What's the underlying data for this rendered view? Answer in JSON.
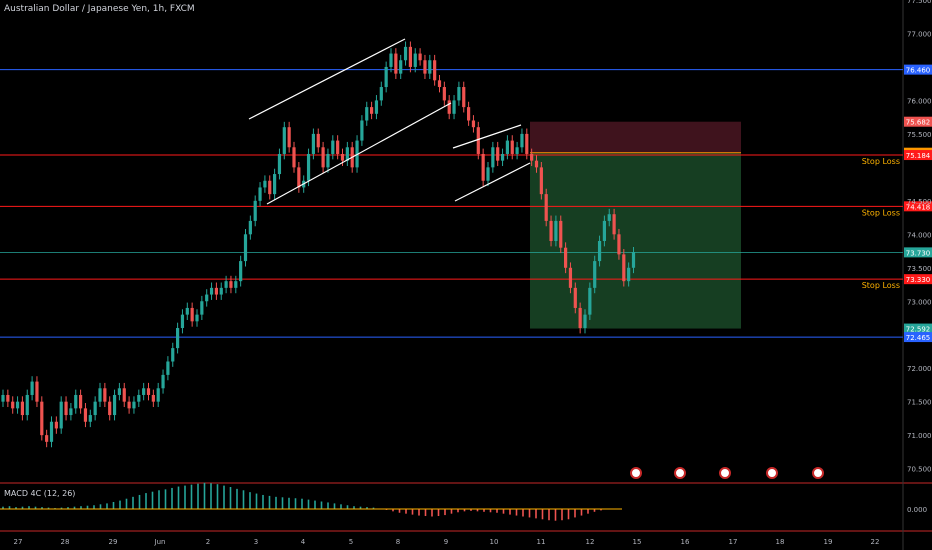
{
  "header": {
    "title": "Australian Dollar / Japanese Yen, 1h, FXCM"
  },
  "macd_panel": {
    "label": "MACD 4C (12, 26)",
    "value_label": "0.000"
  },
  "colors": {
    "background": "#000000",
    "up": "#26a69a",
    "down": "#ef5350",
    "blue_line": "#2962ff",
    "red_line": "#ff1a1a",
    "green_line": "#26a69a",
    "orange_line": "#ff9800",
    "stop_text": "#ffb300",
    "profit_zone": "#1b4d2a",
    "risk_zone": "#4a1622",
    "channel": "#ffffff"
  },
  "chart_data": {
    "type": "candlestick",
    "symbol": "AUDJPY",
    "timeframe": "1h",
    "x_ticks": [
      "27",
      "28",
      "29",
      "Jun",
      "2",
      "3",
      "4",
      "5",
      "8",
      "9",
      "10",
      "11",
      "12",
      "15",
      "16",
      "17",
      "18",
      "19",
      "22"
    ],
    "y_ticks": [
      "77.500",
      "77.000",
      "76.000",
      "75.500",
      "74.500",
      "74.000",
      "73.500",
      "73.000",
      "72.000",
      "71.500",
      "71.000",
      "70.500"
    ],
    "ylim": [
      70.3,
      77.5
    ],
    "price_levels": [
      {
        "value": 76.46,
        "label": "76.460",
        "color": "#2962ff",
        "note": ""
      },
      {
        "value": 75.682,
        "label": "75.682",
        "color": "#ef5350",
        "note": ""
      },
      {
        "value": 75.219,
        "label": "75.219",
        "color": "#ff9800",
        "note": ""
      },
      {
        "value": 75.184,
        "label": "75.184",
        "color": "#ff1a1a",
        "note": "Stop Loss"
      },
      {
        "value": 74.418,
        "label": "74.418",
        "color": "#ff1a1a",
        "note": "Stop Loss"
      },
      {
        "value": 73.73,
        "label": "73.730",
        "color": "#26a69a",
        "note": ""
      },
      {
        "value": 73.33,
        "label": "73.330",
        "color": "#ff1a1a",
        "note": "Stop Loss"
      },
      {
        "value": 72.592,
        "label": "72.592",
        "color": "#26a69a",
        "note": ""
      },
      {
        "value": 72.465,
        "label": "72.465",
        "color": "#2962ff",
        "note": ""
      }
    ],
    "position_zone": {
      "entry": 75.219,
      "stop": 75.682,
      "target": 72.592
    },
    "closes": [
      71.6,
      71.5,
      71.4,
      71.5,
      71.3,
      71.6,
      71.8,
      71.5,
      71.0,
      70.9,
      71.2,
      71.1,
      71.5,
      71.3,
      71.4,
      71.6,
      71.4,
      71.2,
      71.3,
      71.5,
      71.7,
      71.5,
      71.3,
      71.6,
      71.7,
      71.5,
      71.4,
      71.5,
      71.6,
      71.7,
      71.6,
      71.5,
      71.7,
      71.9,
      72.1,
      72.3,
      72.6,
      72.8,
      72.9,
      72.7,
      72.8,
      73.0,
      73.1,
      73.2,
      73.1,
      73.2,
      73.3,
      73.2,
      73.3,
      73.6,
      74.0,
      74.2,
      74.5,
      74.7,
      74.8,
      74.6,
      74.9,
      75.2,
      75.6,
      75.3,
      75.0,
      74.7,
      74.8,
      75.2,
      75.5,
      75.3,
      75.0,
      75.2,
      75.4,
      75.2,
      75.1,
      75.3,
      75.0,
      75.4,
      75.7,
      75.9,
      75.8,
      76.0,
      76.2,
      76.5,
      76.7,
      76.4,
      76.6,
      76.8,
      76.5,
      76.7,
      76.6,
      76.4,
      76.6,
      76.3,
      76.2,
      76.0,
      75.8,
      76.0,
      76.2,
      75.9,
      75.7,
      75.6,
      75.2,
      74.8,
      75.0,
      75.3,
      75.1,
      75.2,
      75.4,
      75.2,
      75.3,
      75.5,
      75.2,
      75.1,
      75.0,
      74.6,
      74.2,
      73.9,
      74.2,
      73.8,
      73.5,
      73.2,
      72.9,
      72.6,
      72.8,
      73.2,
      73.6,
      73.9,
      74.2,
      74.3,
      74.0,
      73.7,
      73.3,
      73.5,
      73.73
    ],
    "x_at": [
      {
        "label": "Jun",
        "index": 36
      },
      {
        "label": "12",
        "index": 128
      }
    ],
    "macd": [
      0.05,
      0.06,
      0.04,
      0.05,
      0.06,
      0.05,
      0.04,
      0.03,
      0.02,
      0.03,
      0.04,
      0.05,
      0.06,
      0.07,
      0.08,
      0.1,
      0.12,
      0.15,
      0.18,
      0.22,
      0.26,
      0.3,
      0.34,
      0.37,
      0.4,
      0.42,
      0.45,
      0.48,
      0.5,
      0.52,
      0.54,
      0.56,
      0.55,
      0.53,
      0.5,
      0.47,
      0.43,
      0.4,
      0.36,
      0.33,
      0.3,
      0.28,
      0.26,
      0.25,
      0.24,
      0.23,
      0.22,
      0.2,
      0.18,
      0.16,
      0.14,
      0.12,
      0.1,
      0.08,
      0.06,
      0.05,
      0.04,
      0.03,
      0.01,
      -0.02,
      -0.05,
      -0.08,
      -0.1,
      -0.12,
      -0.14,
      -0.15,
      -0.16,
      -0.15,
      -0.13,
      -0.1,
      -0.07,
      -0.05,
      -0.04,
      -0.05,
      -0.06,
      -0.07,
      -0.08,
      -0.1,
      -0.12,
      -0.14,
      -0.16,
      -0.18,
      -0.2,
      -0.22,
      -0.24,
      -0.25,
      -0.24,
      -0.22,
      -0.18,
      -0.14,
      -0.1,
      -0.06,
      -0.03,
      -0.01,
      0.0
    ]
  }
}
